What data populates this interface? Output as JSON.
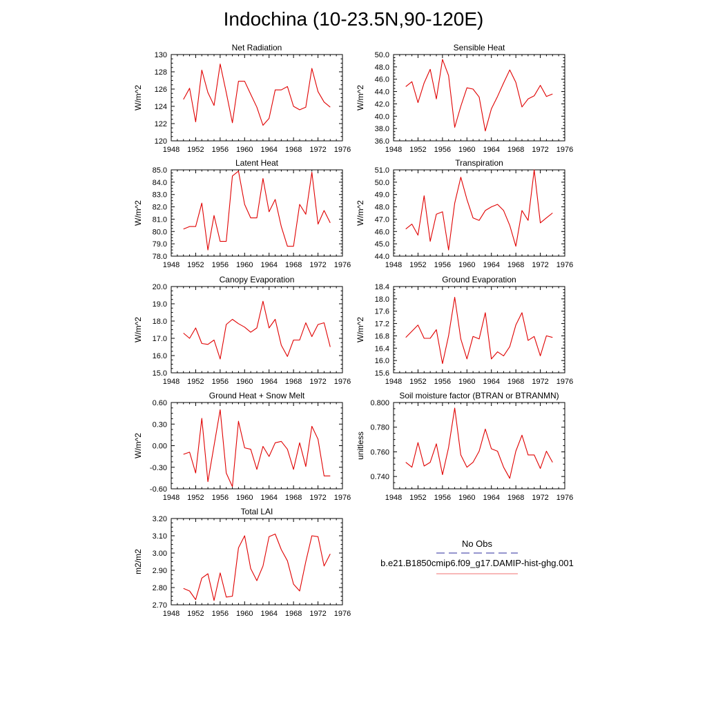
{
  "page": {
    "title": "Indochina (10-23.5N,90-120E)"
  },
  "legend": {
    "obs_label": "No Obs",
    "obs_color": "#2b2b9c",
    "model_label": "b.e21.B1850cmip6.f09_g17.DAMIP-hist-ghg.001",
    "model_color": "#f07070"
  },
  "chart_data": [
    {
      "type": "line",
      "title": "Net Radiation",
      "ylabel": "W/m^2",
      "xlim": [
        1948,
        1976
      ],
      "ylim": [
        120,
        130
      ],
      "xticks": [
        "1948",
        "1952",
        "1956",
        "1960",
        "1964",
        "1968",
        "1972",
        "1976"
      ],
      "yticks": [
        "120",
        "122",
        "124",
        "126",
        "128",
        "130"
      ],
      "series": [
        {
          "color": "#e00000",
          "x": [
            1950,
            1951,
            1952,
            1953,
            1954,
            1955,
            1956,
            1957,
            1958,
            1959,
            1960,
            1961,
            1962,
            1963,
            1964,
            1965,
            1966,
            1967,
            1968,
            1969,
            1970,
            1971,
            1972,
            1973,
            1974
          ],
          "values": [
            124.8,
            126.1,
            122.2,
            128.2,
            125.6,
            124.1,
            128.9,
            125.6,
            122.1,
            126.9,
            126.9,
            125.4,
            123.9,
            121.8,
            122.6,
            125.9,
            125.9,
            126.3,
            124.0,
            123.6,
            123.9,
            128.4,
            125.7,
            124.5,
            123.9
          ]
        }
      ]
    },
    {
      "type": "line",
      "title": "Sensible Heat",
      "ylabel": "W/m^2",
      "xlim": [
        1948,
        1976
      ],
      "ylim": [
        36,
        50
      ],
      "xticks": [
        "1948",
        "1952",
        "1956",
        "1960",
        "1964",
        "1968",
        "1972",
        "1976"
      ],
      "yticks": [
        "36.0",
        "38.0",
        "40.0",
        "42.0",
        "44.0",
        "46.0",
        "48.0",
        "50.0"
      ],
      "series": [
        {
          "color": "#e00000",
          "x": [
            1950,
            1951,
            1952,
            1953,
            1954,
            1955,
            1956,
            1957,
            1958,
            1959,
            1960,
            1961,
            1962,
            1963,
            1964,
            1965,
            1966,
            1967,
            1968,
            1969,
            1970,
            1971,
            1972,
            1973,
            1974
          ],
          "values": [
            44.8,
            45.6,
            42.2,
            45.4,
            47.6,
            42.8,
            49.2,
            46.6,
            38.2,
            41.6,
            44.6,
            44.4,
            43.1,
            37.6,
            41.2,
            43.2,
            45.4,
            47.5,
            45.5,
            41.5,
            42.8,
            43.3,
            45.0,
            43.2,
            43.6
          ]
        }
      ]
    },
    {
      "type": "line",
      "title": "Latent Heat",
      "ylabel": "W/m^2",
      "xlim": [
        1948,
        1976
      ],
      "ylim": [
        78,
        85
      ],
      "xticks": [
        "1948",
        "1952",
        "1956",
        "1960",
        "1964",
        "1968",
        "1972",
        "1976"
      ],
      "yticks": [
        "78.0",
        "79.0",
        "80.0",
        "81.0",
        "82.0",
        "83.0",
        "84.0",
        "85.0"
      ],
      "series": [
        {
          "color": "#e00000",
          "x": [
            1950,
            1951,
            1952,
            1953,
            1954,
            1955,
            1956,
            1957,
            1958,
            1959,
            1960,
            1961,
            1962,
            1963,
            1964,
            1965,
            1966,
            1967,
            1968,
            1969,
            1970,
            1971,
            1972,
            1973,
            1974
          ],
          "values": [
            80.2,
            80.4,
            80.4,
            82.3,
            78.5,
            81.3,
            79.2,
            79.2,
            84.5,
            84.9,
            82.2,
            81.1,
            81.1,
            84.3,
            81.6,
            82.6,
            80.4,
            78.8,
            78.8,
            82.2,
            81.4,
            84.8,
            80.6,
            81.7,
            80.7
          ]
        }
      ]
    },
    {
      "type": "line",
      "title": "Transpiration",
      "ylabel": "W/m^2",
      "xlim": [
        1948,
        1976
      ],
      "ylim": [
        44,
        51
      ],
      "xticks": [
        "1948",
        "1952",
        "1956",
        "1960",
        "1964",
        "1968",
        "1972",
        "1976"
      ],
      "yticks": [
        "44.0",
        "45.0",
        "46.0",
        "47.0",
        "48.0",
        "49.0",
        "50.0",
        "51.0"
      ],
      "series": [
        {
          "color": "#e00000",
          "x": [
            1950,
            1951,
            1952,
            1953,
            1954,
            1955,
            1956,
            1957,
            1958,
            1959,
            1960,
            1961,
            1962,
            1963,
            1964,
            1965,
            1966,
            1967,
            1968,
            1969,
            1970,
            1971,
            1972,
            1973,
            1974
          ],
          "values": [
            46.2,
            46.6,
            45.7,
            48.9,
            45.2,
            47.4,
            47.6,
            44.5,
            48.3,
            50.4,
            48.6,
            47.1,
            46.9,
            47.7,
            48.0,
            48.2,
            47.7,
            46.5,
            44.8,
            47.7,
            46.9,
            51.0,
            46.7,
            47.1,
            47.5
          ]
        }
      ]
    },
    {
      "type": "line",
      "title": "Canopy Evaporation",
      "ylabel": "W/m^2",
      "xlim": [
        1948,
        1976
      ],
      "ylim": [
        15,
        20
      ],
      "xticks": [
        "1948",
        "1952",
        "1956",
        "1960",
        "1964",
        "1968",
        "1972",
        "1976"
      ],
      "yticks": [
        "15.0",
        "16.0",
        "17.0",
        "18.0",
        "19.0",
        "20.0"
      ],
      "series": [
        {
          "color": "#e00000",
          "x": [
            1950,
            1951,
            1952,
            1953,
            1954,
            1955,
            1956,
            1957,
            1958,
            1959,
            1960,
            1961,
            1962,
            1963,
            1964,
            1965,
            1966,
            1967,
            1968,
            1969,
            1970,
            1971,
            1972,
            1973,
            1974
          ],
          "values": [
            17.3,
            17.0,
            17.6,
            16.7,
            16.65,
            16.9,
            15.8,
            17.8,
            18.1,
            17.85,
            17.65,
            17.35,
            17.6,
            19.15,
            17.6,
            18.1,
            16.6,
            15.95,
            16.9,
            16.9,
            17.9,
            17.1,
            17.8,
            17.9,
            16.5
          ]
        }
      ]
    },
    {
      "type": "line",
      "title": "Ground Evaporation",
      "ylabel": "W/m^2",
      "xlim": [
        1948,
        1976
      ],
      "ylim": [
        15.6,
        18.4
      ],
      "xticks": [
        "1948",
        "1952",
        "1956",
        "1960",
        "1964",
        "1968",
        "1972",
        "1976"
      ],
      "yticks": [
        "15.6",
        "16.0",
        "16.4",
        "16.8",
        "17.2",
        "17.6",
        "18.0",
        "18.4"
      ],
      "series": [
        {
          "color": "#e00000",
          "x": [
            1950,
            1951,
            1952,
            1953,
            1954,
            1955,
            1956,
            1957,
            1958,
            1959,
            1960,
            1961,
            1962,
            1963,
            1964,
            1965,
            1966,
            1967,
            1968,
            1969,
            1970,
            1971,
            1972,
            1973,
            1974
          ],
          "values": [
            16.75,
            16.95,
            17.15,
            16.72,
            16.72,
            17.0,
            15.9,
            16.8,
            18.05,
            16.7,
            16.05,
            16.78,
            16.7,
            17.55,
            16.05,
            16.28,
            16.15,
            16.45,
            17.15,
            17.55,
            16.65,
            16.78,
            16.15,
            16.8,
            16.75
          ]
        }
      ]
    },
    {
      "type": "line",
      "title": "Ground Heat + Snow Melt",
      "ylabel": "W/m^2",
      "xlim": [
        1948,
        1976
      ],
      "ylim": [
        -0.6,
        0.6
      ],
      "xticks": [
        "1948",
        "1952",
        "1956",
        "1960",
        "1964",
        "1968",
        "1972",
        "1976"
      ],
      "yticks": [
        "-0.60",
        "-0.30",
        "0.00",
        "0.30",
        "0.60"
      ],
      "series": [
        {
          "color": "#e00000",
          "x": [
            1950,
            1951,
            1952,
            1953,
            1954,
            1955,
            1956,
            1957,
            1958,
            1959,
            1960,
            1961,
            1962,
            1963,
            1964,
            1965,
            1966,
            1967,
            1968,
            1969,
            1970,
            1971,
            1972,
            1973,
            1974
          ],
          "values": [
            -0.12,
            -0.09,
            -0.38,
            0.38,
            -0.5,
            0.0,
            0.5,
            -0.38,
            -0.57,
            0.34,
            -0.03,
            -0.05,
            -0.33,
            -0.01,
            -0.15,
            0.04,
            0.06,
            -0.05,
            -0.33,
            0.04,
            -0.29,
            0.27,
            0.09,
            -0.42,
            -0.42
          ]
        }
      ]
    },
    {
      "type": "line",
      "title": "Soil moisture factor (BTRAN or BTRANMN)",
      "ylabel": "unitless",
      "xlim": [
        1948,
        1976
      ],
      "ylim": [
        0.73,
        0.8
      ],
      "xticks": [
        "1948",
        "1952",
        "1956",
        "1960",
        "1964",
        "1968",
        "1972",
        "1976"
      ],
      "yticks": [
        "0.740",
        "0.760",
        "0.780",
        "0.800"
      ],
      "series": [
        {
          "color": "#e00000",
          "x": [
            1950,
            1951,
            1952,
            1953,
            1954,
            1955,
            1956,
            1957,
            1958,
            1959,
            1960,
            1961,
            1962,
            1963,
            1964,
            1965,
            1966,
            1967,
            1968,
            1969,
            1970,
            1971,
            1972,
            1973,
            1974
          ],
          "values": [
            0.7515,
            0.7475,
            0.7675,
            0.7485,
            0.7515,
            0.7665,
            0.7415,
            0.7635,
            0.7955,
            0.7575,
            0.7475,
            0.7515,
            0.7605,
            0.7785,
            0.7625,
            0.7605,
            0.7475,
            0.7385,
            0.7605,
            0.7735,
            0.7575,
            0.7575,
            0.7465,
            0.7605,
            0.7515
          ]
        }
      ]
    },
    {
      "type": "line",
      "title": "Total LAI",
      "ylabel": "m2/m2",
      "xlim": [
        1948,
        1976
      ],
      "ylim": [
        2.7,
        3.2
      ],
      "xticks": [
        "1948",
        "1952",
        "1956",
        "1960",
        "1964",
        "1968",
        "1972",
        "1976"
      ],
      "yticks": [
        "2.70",
        "2.80",
        "2.90",
        "3.00",
        "3.10",
        "3.20"
      ],
      "series": [
        {
          "color": "#e00000",
          "x": [
            1950,
            1951,
            1952,
            1953,
            1954,
            1955,
            1956,
            1957,
            1958,
            1959,
            1960,
            1961,
            1962,
            1963,
            1964,
            1965,
            1966,
            1967,
            1968,
            1969,
            1970,
            1971,
            1972,
            1973,
            1974
          ],
          "values": [
            2.795,
            2.78,
            2.73,
            2.855,
            2.88,
            2.725,
            2.885,
            2.745,
            2.75,
            3.03,
            3.1,
            2.91,
            2.84,
            2.925,
            3.095,
            3.11,
            3.02,
            2.955,
            2.82,
            2.78,
            2.95,
            3.1,
            3.095,
            2.925,
            2.995
          ]
        }
      ]
    }
  ]
}
